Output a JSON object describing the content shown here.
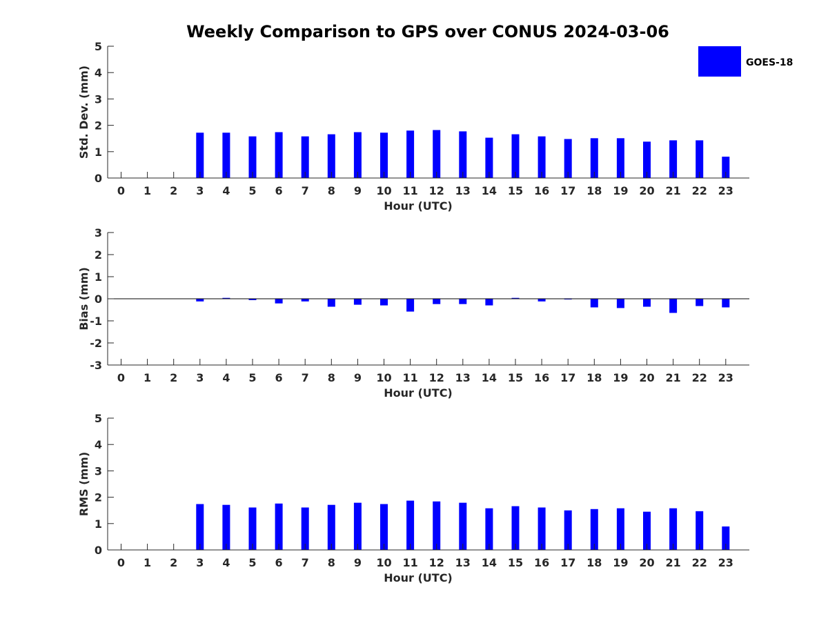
{
  "title": "Weekly Comparison to GPS over CONUS 2024-03-06",
  "legend": {
    "label": "GOES-18",
    "placement": "top-right"
  },
  "colors": {
    "bar": "#0000ff",
    "axis": "#262626"
  },
  "chart_data": [
    {
      "type": "bar",
      "xlabel": "Hour (UTC)",
      "ylabel": "Std. Dev. (mm)",
      "ylim": [
        0,
        5
      ],
      "yticks": [
        0,
        1,
        2,
        3,
        4,
        5
      ],
      "categories": [
        "0",
        "1",
        "2",
        "3",
        "4",
        "5",
        "6",
        "7",
        "8",
        "9",
        "10",
        "11",
        "12",
        "13",
        "14",
        "15",
        "16",
        "17",
        "18",
        "19",
        "20",
        "21",
        "22",
        "23"
      ],
      "series": [
        {
          "name": "GOES-18",
          "values": [
            null,
            null,
            null,
            1.72,
            1.72,
            1.58,
            1.74,
            1.58,
            1.66,
            1.74,
            1.72,
            1.8,
            1.82,
            1.77,
            1.53,
            1.66,
            1.58,
            1.48,
            1.51,
            1.51,
            1.38,
            1.43,
            1.43,
            0.81
          ]
        }
      ]
    },
    {
      "type": "bar",
      "xlabel": "Hour (UTC)",
      "ylabel": "Bias (mm)",
      "ylim": [
        -3,
        3
      ],
      "yticks": [
        -3,
        -2,
        -1,
        0,
        1,
        2,
        3
      ],
      "categories": [
        "0",
        "1",
        "2",
        "3",
        "4",
        "5",
        "6",
        "7",
        "8",
        "9",
        "10",
        "11",
        "12",
        "13",
        "14",
        "15",
        "16",
        "17",
        "18",
        "19",
        "20",
        "21",
        "22",
        "23"
      ],
      "series": [
        {
          "name": "GOES-18",
          "values": [
            null,
            null,
            null,
            -0.12,
            0.04,
            -0.06,
            -0.21,
            -0.12,
            -0.36,
            -0.27,
            -0.3,
            -0.58,
            -0.24,
            -0.24,
            -0.3,
            0.04,
            -0.12,
            -0.02,
            -0.39,
            -0.42,
            -0.36,
            -0.64,
            -0.33,
            -0.39
          ]
        }
      ]
    },
    {
      "type": "bar",
      "xlabel": "Hour (UTC)",
      "ylabel": "RMS (mm)",
      "ylim": [
        0,
        5
      ],
      "yticks": [
        0,
        1,
        2,
        3,
        4,
        5
      ],
      "categories": [
        "0",
        "1",
        "2",
        "3",
        "4",
        "5",
        "6",
        "7",
        "8",
        "9",
        "10",
        "11",
        "12",
        "13",
        "14",
        "15",
        "16",
        "17",
        "18",
        "19",
        "20",
        "21",
        "22",
        "23"
      ],
      "series": [
        {
          "name": "GOES-18",
          "values": [
            null,
            null,
            null,
            1.74,
            1.71,
            1.61,
            1.76,
            1.61,
            1.71,
            1.79,
            1.74,
            1.87,
            1.84,
            1.79,
            1.58,
            1.66,
            1.61,
            1.5,
            1.55,
            1.58,
            1.45,
            1.58,
            1.47,
            0.89
          ]
        }
      ]
    }
  ]
}
